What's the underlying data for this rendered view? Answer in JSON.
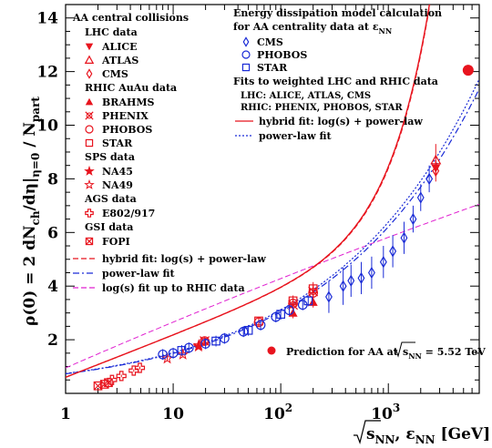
{
  "chart_data": {
    "type": "scatter",
    "x_scale": "log",
    "xlim": [
      1,
      7000
    ],
    "ylim": [
      0,
      14.5
    ],
    "xlabel": {
      "root": "s",
      "sub": "NN",
      "mid": ", ε",
      "sub2": "NN",
      "unit": "[GeV]"
    },
    "ylabel": "ρ(0) = 2 dN_ch/dη|_{η=0} / N_part",
    "x_ticks": [
      {
        "value": 1,
        "label": "1"
      },
      {
        "value": 10,
        "label": "10"
      },
      {
        "value": 100,
        "label": "10",
        "exp": "2"
      },
      {
        "value": 1000,
        "label": "10",
        "exp": "3"
      }
    ],
    "y_ticks": [
      2,
      4,
      6,
      8,
      10,
      12,
      14
    ],
    "colors": {
      "red": "#e8141e",
      "blue": "#1a2bd6",
      "magenta": "#e020d0"
    },
    "legend_left": {
      "groups": [
        {
          "title": "AA central collisions",
          "items": []
        },
        {
          "title": "LHC data",
          "items": [
            {
              "label": "ALICE",
              "marker": "triangle-down-filled",
              "color": "#e8141e"
            },
            {
              "label": "ATLAS",
              "marker": "triangle-up-open",
              "color": "#e8141e"
            },
            {
              "label": "CMS",
              "marker": "diamond-open",
              "color": "#e8141e"
            }
          ]
        },
        {
          "title": "RHIC AuAu data",
          "items": [
            {
              "label": "BRAHMS",
              "marker": "triangle-up-filled",
              "color": "#e8141e"
            },
            {
              "label": "PHENIX",
              "marker": "cross-open",
              "color": "#e8141e"
            },
            {
              "label": "PHOBOS",
              "marker": "circle-open",
              "color": "#e8141e"
            },
            {
              "label": "STAR",
              "marker": "square-open",
              "color": "#e8141e"
            }
          ]
        },
        {
          "title": "SPS data",
          "items": [
            {
              "label": "NA45",
              "marker": "star-filled",
              "color": "#e8141e"
            },
            {
              "label": "NA49",
              "marker": "star-open",
              "color": "#e8141e"
            }
          ]
        },
        {
          "title": "AGS data",
          "items": [
            {
              "label": "E802/917",
              "marker": "plus-open",
              "color": "#e8141e"
            }
          ]
        },
        {
          "title": "GSI data",
          "items": [
            {
              "label": "FOPI",
              "marker": "square-x",
              "color": "#e8141e"
            }
          ]
        }
      ],
      "lines": [
        {
          "label": "hybrid fit: log(s) + power-law",
          "style": "dashed",
          "color": "#e8141e"
        },
        {
          "label": "power-law fit",
          "style": "dashdot",
          "color": "#1a2bd6"
        },
        {
          "label": "log(s) fit up to RHIC data",
          "style": "dashed",
          "color": "#e020d0"
        }
      ]
    },
    "legend_right": {
      "title_line1": "Energy dissipation model calculation",
      "title_line2": "for AA centrality data at ε",
      "title_line2_sub": "NN",
      "items": [
        {
          "label": "CMS",
          "marker": "diamond-open",
          "color": "#1a2bd6"
        },
        {
          "label": "PHOBOS",
          "marker": "circle-open",
          "color": "#1a2bd6"
        },
        {
          "label": "STAR",
          "marker": "square-open",
          "color": "#1a2bd6"
        }
      ],
      "fits_title": "Fits to weighted LHC and RHIC data",
      "fits_line1": "LHC: ALICE, ATLAS, CMS",
      "fits_line2": "RHIC: PHENIX, PHOBOS, STAR",
      "lines": [
        {
          "label": "hybrid fit: log(s) + power-law",
          "style": "solid",
          "color": "#e8141e"
        },
        {
          "label": "power-law fit",
          "style": "dotted",
          "color": "#1a2bd6"
        }
      ]
    },
    "prediction": {
      "label": "Prediction for AA at ",
      "root": "s",
      "sub": "NN",
      "value": " = 5.52 TeV",
      "x": 5520,
      "y": 12.05,
      "color": "#e8141e"
    },
    "series": [
      {
        "name": "ALICE",
        "marker": "triangle-down-filled",
        "color": "#e8141e",
        "points": [
          [
            2760,
            8.4
          ]
        ],
        "errors": [
          0.3
        ]
      },
      {
        "name": "ATLAS",
        "marker": "triangle-up-open",
        "color": "#e8141e",
        "points": [
          [
            2760,
            8.7
          ]
        ],
        "errors": [
          0.6
        ]
      },
      {
        "name": "CMS",
        "marker": "diamond-open",
        "color": "#e8141e",
        "points": [
          [
            2760,
            8.3
          ]
        ],
        "errors": [
          0.4
        ]
      },
      {
        "name": "BRAHMS",
        "marker": "triangle-up-filled",
        "color": "#e8141e",
        "points": [
          [
            130,
            3.0
          ],
          [
            200,
            3.4
          ]
        ],
        "errors": [
          0.2,
          0.2
        ]
      },
      {
        "name": "PHENIX",
        "marker": "cross-open",
        "color": "#e8141e",
        "points": [
          [
            19.6,
            1.95
          ],
          [
            130,
            3.3
          ],
          [
            200,
            3.8
          ]
        ],
        "errors": [
          0.15,
          0.2,
          0.25
        ]
      },
      {
        "name": "PHOBOS",
        "marker": "circle-open",
        "color": "#e8141e",
        "points": [
          [
            19.6,
            1.95
          ],
          [
            62.4,
            2.65
          ],
          [
            130,
            3.35
          ],
          [
            200,
            3.75
          ]
        ],
        "errors": [
          0.1,
          0.15,
          0.2,
          0.25
        ]
      },
      {
        "name": "STAR",
        "marker": "square-open",
        "color": "#e8141e",
        "points": [
          [
            62.4,
            2.7
          ],
          [
            130,
            3.45
          ],
          [
            200,
            3.9
          ]
        ],
        "errors": [
          0.15,
          0.2,
          0.25
        ]
      },
      {
        "name": "NA45",
        "marker": "star-filled",
        "color": "#e8141e",
        "points": [
          [
            17.2,
            1.75
          ]
        ],
        "errors": [
          0.1
        ]
      },
      {
        "name": "NA49",
        "marker": "star-open",
        "color": "#e8141e",
        "points": [
          [
            8.8,
            1.3
          ],
          [
            12.3,
            1.45
          ],
          [
            17.3,
            1.8
          ]
        ],
        "errors": [
          0.1,
          0.1,
          0.1
        ]
      },
      {
        "name": "E802/917",
        "marker": "plus-open",
        "color": "#e8141e",
        "points": [
          [
            2.7,
            0.5
          ],
          [
            3.3,
            0.65
          ],
          [
            4.3,
            0.85
          ],
          [
            4.9,
            0.95
          ]
        ],
        "errors": [
          0.05,
          0.05,
          0.05,
          0.05
        ]
      },
      {
        "name": "FOPI",
        "marker": "square-x",
        "color": "#e8141e",
        "points": [
          [
            2.0,
            0.28
          ],
          [
            2.3,
            0.34
          ],
          [
            2.5,
            0.4
          ]
        ],
        "errors": [
          0.03,
          0.03,
          0.03
        ]
      },
      {
        "name": "CMS calc.",
        "marker": "diamond-open",
        "color": "#1a2bd6",
        "points": [
          [
            280,
            3.6
          ],
          [
            380,
            4.0
          ],
          [
            450,
            4.2
          ],
          [
            560,
            4.3
          ],
          [
            700,
            4.5
          ],
          [
            900,
            4.9
          ],
          [
            1100,
            5.3
          ],
          [
            1400,
            5.8
          ],
          [
            1700,
            6.5
          ],
          [
            2000,
            7.3
          ],
          [
            2400,
            8.0
          ]
        ],
        "errors": [
          0.6,
          0.7,
          0.6,
          0.6,
          0.6,
          0.6,
          0.6,
          0.6,
          0.5,
          0.5,
          0.5
        ]
      },
      {
        "name": "PHOBOS calc.",
        "marker": "circle-open",
        "color": "#1a2bd6",
        "points": [
          [
            8,
            1.45
          ],
          [
            10,
            1.5
          ],
          [
            14,
            1.7
          ],
          [
            20,
            1.85
          ],
          [
            30,
            2.05
          ],
          [
            45,
            2.3
          ],
          [
            65,
            2.55
          ],
          [
            90,
            2.85
          ],
          [
            120,
            3.1
          ],
          [
            160,
            3.3
          ]
        ],
        "errors": [
          0.2,
          0.2,
          0.2,
          0.2,
          0.2,
          0.2,
          0.2,
          0.2,
          0.2,
          0.2
        ]
      },
      {
        "name": "STAR calc.",
        "marker": "square-open",
        "color": "#1a2bd6",
        "points": [
          [
            12,
            1.6
          ],
          [
            25,
            1.95
          ],
          [
            50,
            2.35
          ],
          [
            100,
            2.95
          ],
          [
            180,
            3.45
          ]
        ],
        "errors": [
          0.2,
          0.2,
          0.2,
          0.2,
          0.2
        ]
      }
    ]
  }
}
